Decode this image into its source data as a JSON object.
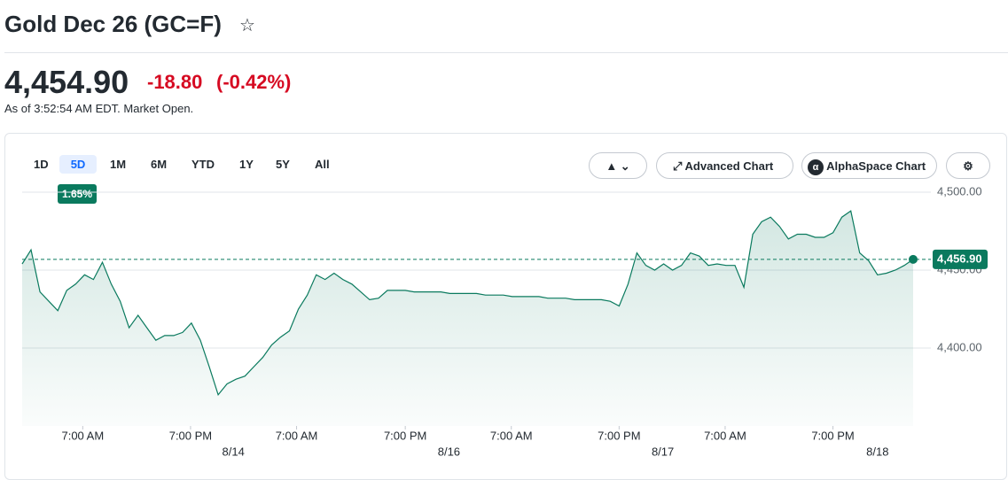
{
  "header": {
    "title": "Gold Dec 26 (GC=F)",
    "price": "4,454.90",
    "change": "-18.80",
    "change_percent": "(-0.42%)",
    "as_of": "As of 3:52:54 AM EDT. Market Open."
  },
  "toolbar": {
    "ranges": [
      "1D",
      "5D",
      "1M",
      "6M",
      "YTD",
      "1Y",
      "5Y",
      "All"
    ],
    "selected_range_tooltip": "1.65%",
    "buttons": [
      "Advanced Chart",
      "AlphaSpace Chart"
    ]
  },
  "chart_data": {
    "type": "line",
    "color": "#0a7a5e",
    "values": [
      4454,
      4463,
      4436,
      4430,
      4424,
      4437,
      4441,
      4447,
      4444,
      4455,
      4441,
      4430,
      4413,
      4421,
      4413,
      4405,
      4408,
      4408,
      4410,
      4416,
      4405,
      4388,
      4370,
      4377,
      4380,
      4382,
      4388,
      4394,
      4402,
      4407,
      4411,
      4425,
      4434,
      4447,
      4444,
      4448,
      4444,
      4441,
      4436,
      4431,
      4432,
      4437,
      4437,
      4437,
      4436,
      4436,
      4436,
      4436,
      4435,
      4435,
      4435,
      4435,
      4434,
      4434,
      4434,
      4433,
      4433,
      4433,
      4433,
      4432,
      4432,
      4432,
      4431,
      4431,
      4431,
      4431,
      4430,
      4427,
      4441,
      4461,
      4453,
      4450,
      4454,
      4450,
      4453,
      4461,
      4459,
      4453,
      4454,
      4453,
      4453,
      4439,
      4473,
      4481,
      4484,
      4478,
      4470,
      4473,
      4473,
      4471,
      4471,
      4474,
      4484,
      4488,
      4461,
      4456,
      4447,
      4448,
      4450,
      4453,
      4456.9
    ],
    "last_label": "4,456.90",
    "xlim": [
      0,
      100
    ],
    "xticks": [
      {
        "value": 6.8,
        "label": "7:00 AM"
      },
      {
        "value": 18.9,
        "label": "7:00 PM"
      },
      {
        "value": 30.8,
        "label": "7:00 AM"
      },
      {
        "value": 43,
        "label": "7:00 PM"
      },
      {
        "value": 54.9,
        "label": "7:00 AM"
      },
      {
        "value": 67,
        "label": "7:00 PM"
      },
      {
        "value": 78.9,
        "label": "7:00 AM"
      },
      {
        "value": 91,
        "label": "7:00 PM"
      }
    ],
    "date_ticks": [
      {
        "value": 23.7,
        "label": "8/14"
      },
      {
        "value": 47.9,
        "label": "8/16"
      },
      {
        "value": 71.9,
        "label": "8/17"
      },
      {
        "value": 96,
        "label": "8/18"
      }
    ],
    "ylim": [
      4350,
      4500
    ],
    "yticks": [
      {
        "value": 4400,
        "label": "4,400.00"
      },
      {
        "value": 4450,
        "label": "4,450.00"
      },
      {
        "value": 4500,
        "label": "4,500.00"
      }
    ],
    "grid": true
  }
}
